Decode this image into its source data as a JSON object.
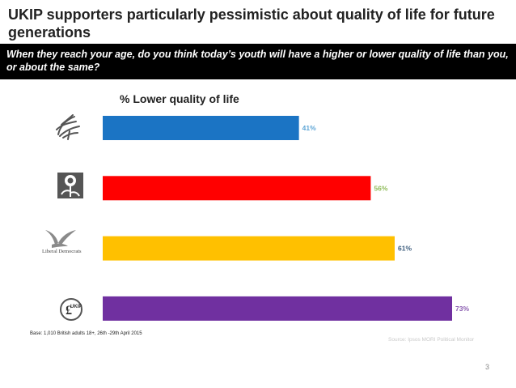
{
  "header": {
    "title": "UKIP supporters particularly pessimistic about quality of life for future generations",
    "question": "When they reach your age, do you think today’s youth will have a higher or lower quality of life than you, or about the same?"
  },
  "chart_data": {
    "type": "bar",
    "orientation": "horizontal",
    "title": "% Lower quality of  life",
    "categories": [
      "Conservative",
      "Labour",
      "Liberal Democrats",
      "UKIP"
    ],
    "values": [
      41,
      56,
      61,
      73
    ],
    "value_labels": [
      "41%",
      "56%",
      "61%",
      "73%"
    ],
    "colors": [
      "#1b74c4",
      "#ff0000",
      "#ffc000",
      "#7030a0"
    ],
    "label_colors": [
      "#5fa6d6",
      "#8fbc5a",
      "#3f5f7f",
      "#8a5cb0"
    ],
    "xlim": [
      0,
      100
    ],
    "grid": false,
    "legend": "none"
  },
  "logos": {
    "libdem_text": "Liberal Democrats",
    "ukip_text": "UKIP"
  },
  "footer": {
    "base": "Base: 1,010 British adults 18+, 26th -29th April 2015",
    "source": "Source: Ipsos MORI Political Monitor",
    "page": "3"
  }
}
